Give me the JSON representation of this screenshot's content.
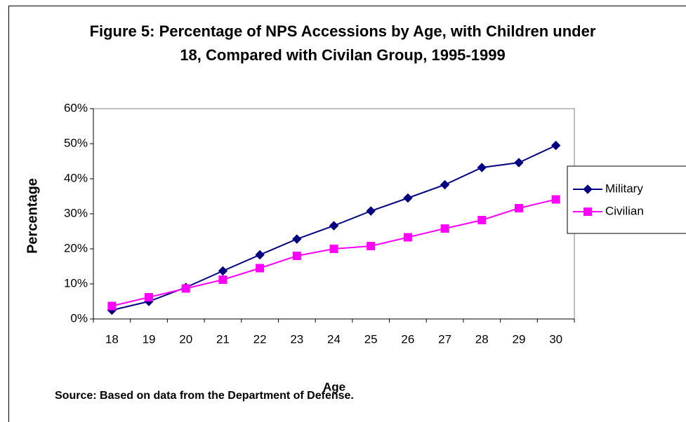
{
  "chart_data": {
    "type": "line",
    "title": "Figure 5: Percentage of NPS Accessions by Age, with Children under 18, Compared with Civilan Group, 1995-1999",
    "x_label": "Age",
    "y_label": "Percentage",
    "source": "Source: Based on data from the Department of Defense.",
    "categories": [
      "18",
      "19",
      "20",
      "21",
      "22",
      "23",
      "24",
      "25",
      "26",
      "27",
      "28",
      "29",
      "30"
    ],
    "series": [
      {
        "name": "Military",
        "color": "#000080",
        "marker": "diamond",
        "values": [
          2.5,
          5,
          9,
          13.7,
          18.3,
          22.8,
          26.6,
          30.8,
          34.5,
          38.3,
          43.2,
          44.6,
          49.5
        ]
      },
      {
        "name": "Civilian",
        "color": "#ff00ff",
        "marker": "square",
        "values": [
          3.7,
          6.2,
          8.7,
          11.2,
          14.5,
          18,
          20,
          20.8,
          23.3,
          25.8,
          28.2,
          31.6,
          34.1
        ]
      }
    ],
    "ylim": [
      0,
      60
    ],
    "yticks": [
      {
        "value": 0,
        "label": "0%"
      },
      {
        "value": 10,
        "label": "10%"
      },
      {
        "value": 20,
        "label": "20%"
      },
      {
        "value": 30,
        "label": "30%"
      },
      {
        "value": 40,
        "label": "40%"
      },
      {
        "value": 50,
        "label": "50%"
      },
      {
        "value": 60,
        "label": "60%"
      }
    ],
    "grid": false,
    "legend": "right"
  }
}
